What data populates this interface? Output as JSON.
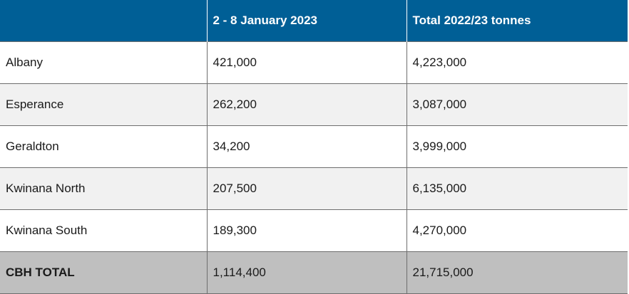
{
  "table": {
    "headers": [
      "",
      "2 - 8 January 2023",
      "Total 2022/23 tonnes"
    ],
    "rows": [
      {
        "port": "Albany",
        "week": "421,000",
        "total": "4,223,000"
      },
      {
        "port": "Esperance",
        "week": "262,200",
        "total": "3,087,000"
      },
      {
        "port": "Geraldton",
        "week": "34,200",
        "total": "3,999,000"
      },
      {
        "port": "Kwinana North",
        "week": "207,500",
        "total": "6,135,000"
      },
      {
        "port": "Kwinana South",
        "week": "189,300",
        "total": "4,270,000"
      }
    ],
    "total": {
      "label": "CBH TOTAL",
      "week": "1,114,400",
      "total": "21,715,000"
    }
  },
  "colors": {
    "header_bg": "#005f96",
    "header_text": "#ffffff",
    "stripe": "#f1f1f1",
    "total_bg": "#bfbfbf"
  }
}
